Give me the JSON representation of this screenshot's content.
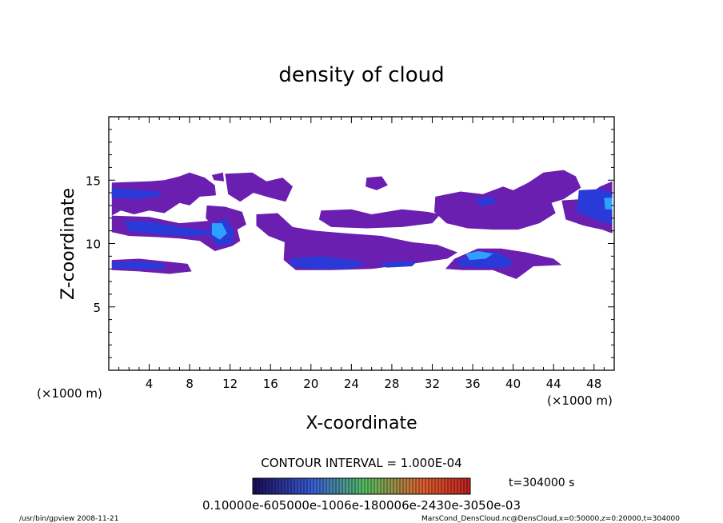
{
  "chart_data": {
    "type": "heatmap",
    "title": "density of cloud",
    "xlabel": "X-coordinate",
    "ylabel": "Z-coordinate",
    "x_unit_left": "(×1000 m)",
    "x_unit_right": "(×1000 m)",
    "xlim": [
      0,
      50
    ],
    "ylim": [
      0,
      20
    ],
    "x_ticks": [
      4,
      8,
      12,
      16,
      20,
      24,
      28,
      32,
      36,
      40,
      44,
      48
    ],
    "x_tick_labels": [
      "4",
      "8",
      "12",
      "16",
      "20",
      "24",
      "28",
      "32",
      "36",
      "40",
      "44",
      "48"
    ],
    "y_ticks": [
      5,
      10,
      15
    ],
    "y_tick_labels": [
      "5",
      "10",
      "15"
    ],
    "contour_interval_label": "CONTOUR INTERVAL = 1.000E-04",
    "time_label": "t=304000 s",
    "colorbar_labels_text": "0.10000e-605000e-1006e-180006e-2430e-3050e-03",
    "colors": {
      "low": "#6a1fb0",
      "mid": "#2a3ad8",
      "high": "#2fa0ff",
      "cbar_dark": "#1a0a5a",
      "cbar_blue": "#3a60d8",
      "cbar_green": "#56c060",
      "cbar_orange": "#e06030",
      "cbar_red": "#c02020"
    },
    "regions": [
      {
        "level": "low",
        "poly": [
          [
            0.3,
            14.8
          ],
          [
            4,
            14.9
          ],
          [
            5.5,
            15
          ],
          [
            7,
            15.3
          ],
          [
            8,
            15.6
          ],
          [
            9.5,
            15.2
          ],
          [
            10.5,
            14.6
          ],
          [
            10.6,
            13.8
          ],
          [
            9,
            13.7
          ],
          [
            8,
            13
          ],
          [
            7,
            13.2
          ],
          [
            5.5,
            12.4
          ],
          [
            4,
            12.6
          ],
          [
            2.5,
            12.3
          ],
          [
            1.2,
            12.6
          ],
          [
            0.3,
            12.2
          ]
        ]
      },
      {
        "level": "low",
        "poly": [
          [
            0.3,
            12.2
          ],
          [
            4,
            12.1
          ],
          [
            7,
            11.6
          ],
          [
            10,
            11.8
          ],
          [
            11.7,
            12.3
          ],
          [
            12.6,
            11.5
          ],
          [
            13,
            10.2
          ],
          [
            12.2,
            9.8
          ],
          [
            10.5,
            9.4
          ],
          [
            9,
            10.2
          ],
          [
            7,
            10.4
          ],
          [
            5,
            10.5
          ],
          [
            2,
            10.6
          ],
          [
            0.3,
            10.9
          ]
        ]
      },
      {
        "level": "low",
        "poly": [
          [
            0.3,
            8.7
          ],
          [
            3,
            8.8
          ],
          [
            5.5,
            8.6
          ],
          [
            7.8,
            8.4
          ],
          [
            8.2,
            7.8
          ],
          [
            6,
            7.6
          ],
          [
            3,
            7.8
          ],
          [
            0.3,
            7.9
          ]
        ]
      },
      {
        "level": "low",
        "poly": [
          [
            11.5,
            15.5
          ],
          [
            14.2,
            15.6
          ],
          [
            15.6,
            14.9
          ],
          [
            17.2,
            15.2
          ],
          [
            18.2,
            14.5
          ],
          [
            17.5,
            13.3
          ],
          [
            16,
            13.6
          ],
          [
            14.3,
            14
          ],
          [
            13,
            13.3
          ],
          [
            11.8,
            13.9
          ]
        ]
      },
      {
        "level": "low",
        "poly": [
          [
            9.7,
            13
          ],
          [
            11.5,
            12.9
          ],
          [
            13.2,
            12.5
          ],
          [
            13.6,
            11.5
          ],
          [
            12.5,
            11
          ],
          [
            10.5,
            11.2
          ],
          [
            9.6,
            12
          ]
        ]
      },
      {
        "level": "low",
        "poly": [
          [
            14.6,
            12.3
          ],
          [
            16.7,
            12.4
          ],
          [
            18.2,
            11.3
          ],
          [
            20.5,
            11
          ],
          [
            23.5,
            10.8
          ],
          [
            27,
            10.6
          ],
          [
            30,
            10.1
          ],
          [
            32.5,
            9.9
          ],
          [
            34.5,
            9.3
          ],
          [
            33.5,
            8.8
          ],
          [
            30,
            8.4
          ],
          [
            26,
            8
          ],
          [
            22,
            7.9
          ],
          [
            18.5,
            7.9
          ],
          [
            17.3,
            8.7
          ],
          [
            17.4,
            10.1
          ],
          [
            15.8,
            10.6
          ],
          [
            14.6,
            11.4
          ]
        ]
      },
      {
        "level": "low",
        "poly": [
          [
            21,
            12.6
          ],
          [
            24,
            12.7
          ],
          [
            26,
            12.3
          ],
          [
            29,
            12.7
          ],
          [
            31.5,
            12.5
          ],
          [
            32.8,
            12.3
          ],
          [
            32,
            11.6
          ],
          [
            29,
            11.3
          ],
          [
            25.5,
            11.2
          ],
          [
            22,
            11.3
          ],
          [
            20.8,
            11.9
          ]
        ]
      },
      {
        "level": "low",
        "poly": [
          [
            25.5,
            15.2
          ],
          [
            27,
            15.3
          ],
          [
            27.6,
            14.6
          ],
          [
            26.5,
            14.2
          ],
          [
            25.4,
            14.5
          ]
        ]
      },
      {
        "level": "low",
        "poly": [
          [
            34.2,
            8.8
          ],
          [
            36.5,
            9.6
          ],
          [
            38.8,
            9.6
          ],
          [
            41.3,
            9.3
          ],
          [
            44,
            8.8
          ],
          [
            44.8,
            8.3
          ],
          [
            42,
            8.2
          ],
          [
            41,
            7.6
          ],
          [
            40.3,
            7.2
          ],
          [
            38,
            7.9
          ],
          [
            35,
            7.9
          ],
          [
            33.3,
            8
          ]
        ]
      },
      {
        "level": "low",
        "poly": [
          [
            32.3,
            13.7
          ],
          [
            34.8,
            14.1
          ],
          [
            37,
            13.9
          ],
          [
            39,
            14.5
          ],
          [
            40,
            14.2
          ],
          [
            41.5,
            14.8
          ],
          [
            43,
            15.6
          ],
          [
            45,
            15.8
          ],
          [
            46.2,
            15.3
          ],
          [
            46.7,
            14.4
          ],
          [
            45,
            13.5
          ],
          [
            43.8,
            13.2
          ],
          [
            44.2,
            12.4
          ],
          [
            42.6,
            11.6
          ],
          [
            40.5,
            11.1
          ],
          [
            38,
            11.1
          ],
          [
            35.5,
            11.2
          ],
          [
            33.4,
            11.6
          ],
          [
            32.2,
            12.5
          ]
        ]
      },
      {
        "level": "low",
        "poly": [
          [
            44.8,
            13.4
          ],
          [
            46.8,
            13.5
          ],
          [
            48.6,
            14.5
          ],
          [
            49.8,
            14.9
          ],
          [
            49.8,
            10.8
          ],
          [
            48.8,
            11.1
          ],
          [
            47,
            11.4
          ],
          [
            45.2,
            11.9
          ]
        ]
      },
      {
        "level": "low",
        "poly": [
          [
            10.2,
            15.4
          ],
          [
            11.3,
            15.6
          ],
          [
            11.4,
            14.9
          ],
          [
            10.4,
            15
          ]
        ]
      },
      {
        "level": "mid",
        "poly": [
          [
            0.3,
            14.4
          ],
          [
            3,
            14.2
          ],
          [
            5,
            14.1
          ],
          [
            5,
            13.7
          ],
          [
            2.5,
            13.5
          ],
          [
            0.3,
            13.6
          ]
        ]
      },
      {
        "level": "mid",
        "poly": [
          [
            0.3,
            8.5
          ],
          [
            3.5,
            8.6
          ],
          [
            5.5,
            8.4
          ],
          [
            5.5,
            8
          ],
          [
            2.5,
            8
          ],
          [
            0.3,
            8.1
          ]
        ]
      },
      {
        "level": "mid",
        "poly": [
          [
            1.5,
            11.8
          ],
          [
            4.5,
            11.7
          ],
          [
            7,
            11.3
          ],
          [
            9.5,
            11.1
          ],
          [
            10.3,
            10.7
          ],
          [
            8,
            10.6
          ],
          [
            5,
            10.7
          ],
          [
            2,
            11
          ]
        ]
      },
      {
        "level": "mid",
        "poly": [
          [
            10,
            11.5
          ],
          [
            11.5,
            12
          ],
          [
            12.4,
            11
          ],
          [
            12.2,
            10
          ],
          [
            10.8,
            9.8
          ],
          [
            10,
            10.6
          ]
        ]
      },
      {
        "level": "mid",
        "poly": [
          [
            18,
            8.8
          ],
          [
            21,
            9
          ],
          [
            24,
            8.7
          ],
          [
            25.5,
            8.5
          ],
          [
            24,
            8
          ],
          [
            20.5,
            8
          ],
          [
            18,
            8.2
          ]
        ]
      },
      {
        "level": "mid",
        "poly": [
          [
            26.5,
            8.4
          ],
          [
            28.5,
            8.6
          ],
          [
            30.5,
            8.6
          ],
          [
            30,
            8.2
          ],
          [
            27.5,
            8.1
          ]
        ]
      },
      {
        "level": "mid",
        "poly": [
          [
            34.5,
            8.7
          ],
          [
            36.5,
            9.4
          ],
          [
            38.5,
            9.3
          ],
          [
            40,
            8.6
          ],
          [
            39.5,
            8.1
          ],
          [
            36.5,
            8.1
          ],
          [
            34.5,
            8.2
          ]
        ]
      },
      {
        "level": "mid",
        "poly": [
          [
            46.5,
            14.2
          ],
          [
            48.8,
            14.3
          ],
          [
            49.8,
            14
          ],
          [
            49.8,
            11.5
          ],
          [
            48.3,
            11.8
          ],
          [
            46.3,
            12.5
          ]
        ]
      },
      {
        "level": "mid",
        "poly": [
          [
            36.2,
            13.5
          ],
          [
            38,
            13.7
          ],
          [
            38.3,
            13.2
          ],
          [
            36.8,
            12.9
          ]
        ]
      },
      {
        "level": "high",
        "poly": [
          [
            10.2,
            11.6
          ],
          [
            11.2,
            11.6
          ],
          [
            11.7,
            10.8
          ],
          [
            11,
            10.3
          ],
          [
            10.2,
            10.7
          ]
        ]
      },
      {
        "level": "high",
        "poly": [
          [
            35.3,
            9.2
          ],
          [
            36.6,
            9.4
          ],
          [
            38,
            9.2
          ],
          [
            37.3,
            8.8
          ],
          [
            35.7,
            8.7
          ]
        ]
      },
      {
        "level": "high",
        "poly": [
          [
            49,
            13.6
          ],
          [
            49.8,
            13.6
          ],
          [
            49.8,
            12.7
          ],
          [
            49.1,
            12.7
          ]
        ]
      }
    ]
  },
  "footer": {
    "left": "/usr/bin/gpview   2008-11-21",
    "right": "MarsCond_DensCloud.nc@DensCloud,x=0:50000,z=0:20000,t=304000"
  }
}
